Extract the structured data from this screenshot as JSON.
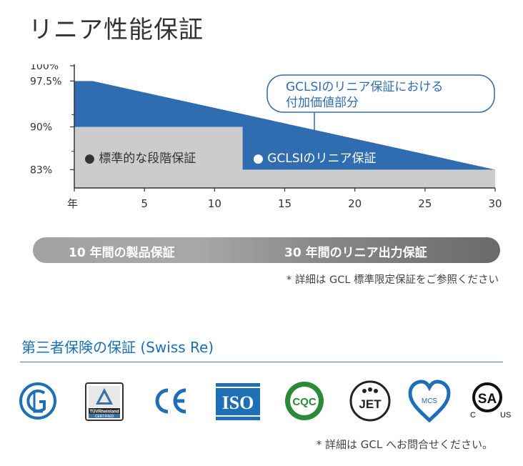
{
  "page": {
    "title": "リニア性能保証",
    "warranty_bar": {
      "product_label": "10 年間の製品保証",
      "linear_label": "30 年間のリニア出力保証"
    },
    "note_details": "* 詳細は GCL 標準限定保証をご参照ください",
    "insurance_heading": "第三者保険の保証 (Swiss Re)",
    "note_contact": "* 詳細は GCL へお問合せください。"
  },
  "colors": {
    "blue": "#2f6db0",
    "gray": "#cccccc",
    "heading_blue": "#1a70b8",
    "axis": "#333333"
  },
  "chart_data": {
    "type": "area",
    "x_axis": {
      "range": [
        0,
        30
      ],
      "tick_labels": [
        {
          "value": 0,
          "label": "年"
        },
        {
          "value": 5,
          "label": "5"
        },
        {
          "value": 10,
          "label": "10"
        },
        {
          "value": 15,
          "label": "15"
        },
        {
          "value": 20,
          "label": "20"
        },
        {
          "value": 25,
          "label": "25"
        },
        {
          "value": 30,
          "label": "30"
        }
      ]
    },
    "y_axis": {
      "range": [
        80,
        100
      ],
      "tick_labels": [
        {
          "value": 100,
          "label": "100%"
        },
        {
          "value": 97.5,
          "label": "97.5%"
        },
        {
          "value": 90,
          "label": "90%"
        },
        {
          "value": 83,
          "label": "83%"
        }
      ]
    },
    "series": [
      {
        "name": "GCLSIのリニア保証",
        "color": "#2f6db0",
        "points": [
          {
            "x": 0,
            "y": 97.5
          },
          {
            "x": 1.3,
            "y": 97.5
          },
          {
            "x": 30,
            "y": 83
          }
        ]
      },
      {
        "name": "標準的な段階保証",
        "color": "#cccccc",
        "points": [
          {
            "x": 0,
            "y": 90
          },
          {
            "x": 12,
            "y": 90
          },
          {
            "x": 12,
            "y": 83
          },
          {
            "x": 30,
            "y": 83
          }
        ]
      }
    ],
    "annotation": "GCLSIのリニア保証における付加価値部分",
    "grid": false
  },
  "cert_logos": [
    {
      "icon": "gc-logo",
      "label": ""
    },
    {
      "icon": "tuv-rheinland-logo",
      "label": "TÜVRheinland CERTIFIED"
    },
    {
      "icon": "ce-mark",
      "label": "CE"
    },
    {
      "icon": "iso-logo",
      "label": "ISO"
    },
    {
      "icon": "cqc-logo",
      "label": "CQC"
    },
    {
      "icon": "jet-logo",
      "label": "JET"
    },
    {
      "icon": "mcs-logo",
      "label": "MCS"
    },
    {
      "icon": "csa-logo",
      "label": "C US"
    }
  ]
}
